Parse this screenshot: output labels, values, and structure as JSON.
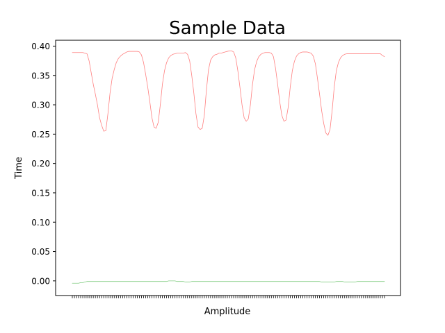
{
  "chart_data": {
    "type": "line",
    "title": "Sample Data",
    "xlabel": "Amplitude",
    "ylabel": "Time",
    "ylim": [
      -0.025,
      0.41
    ],
    "yticks": [
      0.0,
      0.05,
      0.1,
      0.15,
      0.2,
      0.25,
      0.3,
      0.35,
      0.4
    ],
    "ytick_labels": [
      "0.00",
      "0.05",
      "0.10",
      "0.15",
      "0.20",
      "0.25",
      "0.30",
      "0.35",
      "0.40"
    ],
    "xtick_count": 150,
    "xtick_labels_shown": false,
    "grid": false,
    "legend": "none",
    "series": [
      {
        "color": "#ff7f7f",
        "x_count": 150,
        "values": [
          0.389,
          0.389,
          0.389,
          0.389,
          0.389,
          0.389,
          0.388,
          0.387,
          0.375,
          0.355,
          0.335,
          0.318,
          0.3,
          0.278,
          0.265,
          0.255,
          0.256,
          0.285,
          0.32,
          0.345,
          0.36,
          0.372,
          0.379,
          0.383,
          0.386,
          0.388,
          0.39,
          0.391,
          0.391,
          0.391,
          0.391,
          0.391,
          0.39,
          0.385,
          0.372,
          0.352,
          0.33,
          0.305,
          0.278,
          0.262,
          0.26,
          0.27,
          0.3,
          0.335,
          0.358,
          0.372,
          0.38,
          0.384,
          0.386,
          0.387,
          0.388,
          0.388,
          0.388,
          0.388,
          0.389,
          0.386,
          0.375,
          0.35,
          0.32,
          0.285,
          0.262,
          0.258,
          0.26,
          0.282,
          0.325,
          0.36,
          0.376,
          0.382,
          0.385,
          0.386,
          0.388,
          0.388,
          0.389,
          0.39,
          0.391,
          0.392,
          0.392,
          0.39,
          0.38,
          0.358,
          0.33,
          0.3,
          0.278,
          0.272,
          0.276,
          0.3,
          0.335,
          0.36,
          0.374,
          0.382,
          0.386,
          0.388,
          0.389,
          0.389,
          0.389,
          0.388,
          0.382,
          0.362,
          0.335,
          0.305,
          0.282,
          0.272,
          0.274,
          0.295,
          0.33,
          0.358,
          0.374,
          0.383,
          0.387,
          0.389,
          0.39,
          0.39,
          0.39,
          0.389,
          0.388,
          0.383,
          0.37,
          0.345,
          0.318,
          0.29,
          0.268,
          0.252,
          0.248,
          0.258,
          0.29,
          0.33,
          0.358,
          0.372,
          0.38,
          0.384,
          0.386,
          0.387,
          0.387,
          0.387,
          0.387,
          0.387,
          0.387,
          0.387,
          0.387,
          0.387,
          0.387,
          0.387,
          0.387,
          0.387,
          0.387,
          0.387,
          0.387,
          0.387,
          0.384,
          0.382
        ]
      },
      {
        "color": "#80cc80",
        "x_count": 150,
        "values": [
          -0.004,
          -0.004,
          -0.004,
          -0.004,
          -0.003,
          -0.003,
          -0.002,
          -0.001,
          -0.001,
          -0.001,
          -0.001,
          -0.001,
          -0.001,
          -0.001,
          -0.001,
          -0.001,
          -0.001,
          -0.001,
          -0.001,
          -0.001,
          -0.001,
          -0.001,
          -0.001,
          -0.001,
          -0.001,
          -0.001,
          -0.001,
          -0.001,
          -0.001,
          -0.001,
          -0.001,
          -0.001,
          -0.001,
          -0.001,
          -0.001,
          -0.001,
          -0.001,
          -0.001,
          -0.001,
          -0.001,
          -0.001,
          -0.001,
          -0.001,
          -0.001,
          -0.001,
          -0.001,
          0.0,
          0.0,
          0.0,
          0.0,
          -0.001,
          -0.001,
          -0.001,
          -0.001,
          -0.002,
          -0.002,
          -0.002,
          -0.001,
          -0.001,
          -0.001,
          -0.001,
          -0.001,
          -0.001,
          -0.001,
          -0.001,
          -0.001,
          -0.001,
          -0.001,
          -0.001,
          -0.001,
          -0.001,
          -0.001,
          -0.001,
          -0.001,
          -0.001,
          -0.001,
          -0.001,
          -0.001,
          -0.001,
          -0.001,
          -0.001,
          -0.001,
          -0.001,
          -0.001,
          -0.001,
          -0.001,
          -0.001,
          -0.001,
          -0.001,
          -0.001,
          -0.001,
          -0.001,
          -0.001,
          -0.001,
          -0.001,
          -0.001,
          -0.001,
          -0.001,
          -0.001,
          -0.001,
          -0.001,
          -0.001,
          -0.001,
          -0.001,
          -0.001,
          -0.001,
          -0.001,
          -0.001,
          -0.001,
          -0.001,
          -0.001,
          -0.001,
          -0.001,
          -0.001,
          -0.001,
          -0.001,
          -0.001,
          -0.001,
          -0.001,
          -0.002,
          -0.002,
          -0.002,
          -0.002,
          -0.002,
          -0.002,
          -0.002,
          -0.001,
          -0.001,
          -0.001,
          -0.001,
          -0.002,
          -0.002,
          -0.002,
          -0.002,
          -0.002,
          -0.002,
          -0.001,
          -0.001,
          -0.001,
          -0.001,
          -0.001,
          -0.001,
          -0.001,
          -0.001,
          -0.001,
          -0.001,
          -0.001,
          -0.001,
          -0.001,
          -0.001
        ]
      }
    ]
  }
}
